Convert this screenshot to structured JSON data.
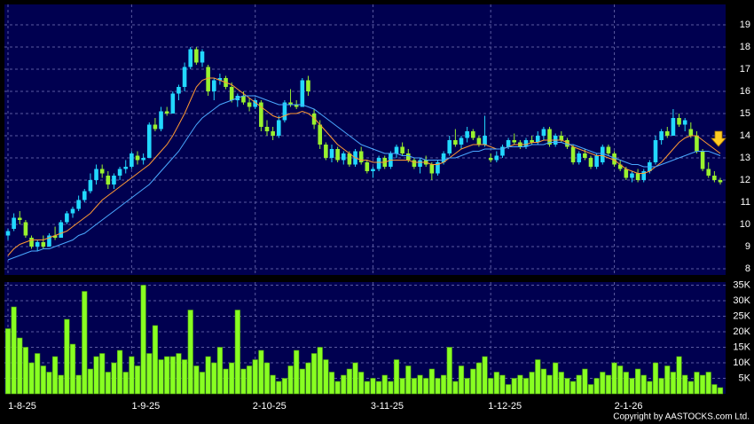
{
  "chart_data": [
    {
      "type": "candlestick",
      "up_color": "#22d8ff",
      "down_color": "#99f22e",
      "ylim": [
        7.72,
        19.92
      ],
      "yticks": [
        8,
        9,
        10,
        11,
        12,
        13,
        14,
        15,
        16,
        17,
        18,
        19
      ],
      "grid": true,
      "ohlc": [
        [
          9.5,
          9.8,
          9.3,
          9.7
        ],
        [
          9.8,
          10.5,
          9.7,
          10.3
        ],
        [
          10.3,
          10.6,
          10.0,
          10.2
        ],
        [
          10.1,
          10.2,
          9.4,
          9.5
        ],
        [
          9.4,
          9.5,
          8.9,
          9.0
        ],
        [
          9.0,
          9.3,
          8.8,
          9.2
        ],
        [
          9.2,
          9.5,
          8.9,
          9.0
        ],
        [
          9.0,
          9.6,
          9.0,
          9.5
        ],
        [
          9.5,
          9.9,
          9.3,
          9.4
        ],
        [
          9.4,
          10.2,
          9.4,
          10.1
        ],
        [
          10.1,
          10.6,
          10.0,
          10.5
        ],
        [
          10.5,
          10.8,
          10.3,
          10.7
        ],
        [
          10.7,
          11.3,
          10.6,
          11.1
        ],
        [
          11.1,
          11.6,
          11.0,
          11.5
        ],
        [
          11.5,
          12.3,
          11.4,
          12.0
        ],
        [
          12.0,
          12.7,
          11.8,
          12.5
        ],
        [
          12.5,
          12.7,
          12.1,
          12.3
        ],
        [
          12.2,
          12.4,
          11.6,
          11.8
        ],
        [
          11.8,
          12.3,
          11.6,
          12.2
        ],
        [
          12.2,
          12.6,
          12.0,
          12.5
        ],
        [
          12.5,
          12.9,
          12.3,
          12.6
        ],
        [
          12.6,
          13.3,
          12.5,
          13.2
        ],
        [
          13.1,
          13.3,
          12.7,
          12.9
        ],
        [
          12.9,
          13.2,
          12.7,
          13.0
        ],
        [
          13.0,
          14.6,
          13.0,
          14.5
        ],
        [
          14.5,
          14.8,
          14.2,
          14.3
        ],
        [
          14.3,
          15.3,
          14.2,
          15.1
        ],
        [
          15.1,
          15.3,
          14.9,
          15.0
        ],
        [
          15.0,
          16.0,
          15.0,
          15.9
        ],
        [
          15.9,
          16.3,
          15.6,
          16.2
        ],
        [
          16.2,
          17.3,
          16.0,
          17.1
        ],
        [
          17.1,
          18.0,
          17.0,
          17.9
        ],
        [
          17.9,
          18.0,
          17.2,
          17.3
        ],
        [
          17.3,
          17.9,
          17.1,
          17.8
        ],
        [
          17.1,
          17.2,
          15.8,
          16.0
        ],
        [
          16.0,
          16.6,
          15.6,
          16.5
        ],
        [
          16.5,
          16.8,
          16.3,
          16.6
        ],
        [
          16.6,
          16.7,
          16.1,
          16.2
        ],
        [
          16.2,
          16.4,
          15.5,
          15.6
        ],
        [
          15.6,
          15.9,
          15.3,
          15.8
        ],
        [
          15.8,
          16.0,
          15.4,
          15.5
        ],
        [
          15.5,
          15.7,
          15.1,
          15.3
        ],
        [
          15.3,
          15.7,
          15.2,
          15.6
        ],
        [
          15.5,
          15.6,
          14.2,
          14.4
        ],
        [
          14.4,
          14.7,
          14.0,
          14.2
        ],
        [
          14.2,
          14.4,
          13.8,
          14.0
        ],
        [
          14.0,
          14.9,
          13.9,
          14.7
        ],
        [
          14.7,
          15.6,
          14.6,
          15.5
        ],
        [
          15.5,
          16.1,
          15.3,
          15.4
        ],
        [
          15.4,
          15.6,
          15.2,
          15.3
        ],
        [
          15.3,
          16.6,
          15.3,
          16.5
        ],
        [
          16.5,
          16.7,
          15.8,
          16.0
        ],
        [
          15.0,
          15.2,
          14.3,
          14.5
        ],
        [
          14.5,
          14.7,
          13.4,
          13.6
        ],
        [
          13.6,
          13.7,
          12.9,
          13.0
        ],
        [
          13.0,
          13.6,
          12.8,
          13.4
        ],
        [
          13.4,
          13.5,
          12.8,
          12.9
        ],
        [
          12.9,
          13.3,
          12.7,
          13.2
        ],
        [
          13.2,
          13.3,
          12.6,
          12.7
        ],
        [
          12.7,
          13.4,
          12.6,
          13.3
        ],
        [
          13.3,
          13.5,
          12.7,
          12.8
        ],
        [
          12.8,
          12.9,
          12.3,
          12.4
        ],
        [
          12.4,
          12.6,
          12.1,
          12.5
        ],
        [
          12.5,
          13.1,
          12.4,
          13.0
        ],
        [
          13.0,
          13.1,
          12.5,
          12.6
        ],
        [
          12.6,
          13.3,
          12.5,
          13.2
        ],
        [
          13.2,
          13.6,
          13.0,
          13.5
        ],
        [
          13.5,
          13.7,
          13.1,
          13.2
        ],
        [
          13.2,
          13.4,
          12.8,
          12.9
        ],
        [
          12.9,
          13.0,
          12.5,
          12.6
        ],
        [
          12.6,
          13.0,
          12.3,
          12.9
        ],
        [
          12.9,
          13.1,
          12.6,
          12.7
        ],
        [
          12.7,
          12.8,
          12.0,
          12.3
        ],
        [
          12.3,
          12.9,
          12.2,
          12.8
        ],
        [
          12.8,
          13.3,
          12.7,
          13.2
        ],
        [
          13.2,
          14.0,
          13.1,
          13.8
        ],
        [
          13.8,
          14.3,
          13.5,
          13.6
        ],
        [
          13.6,
          14.0,
          13.4,
          13.9
        ],
        [
          13.9,
          14.4,
          13.7,
          14.2
        ],
        [
          14.2,
          14.3,
          13.8,
          13.9
        ],
        [
          13.9,
          14.0,
          13.5,
          13.6
        ],
        [
          13.6,
          14.9,
          13.5,
          14.0
        ],
        [
          13.0,
          13.2,
          12.8,
          12.9
        ],
        [
          12.9,
          13.3,
          12.8,
          13.1
        ],
        [
          13.1,
          13.6,
          13.0,
          13.5
        ],
        [
          13.5,
          13.9,
          13.4,
          13.8
        ],
        [
          13.8,
          14.1,
          13.6,
          13.7
        ],
        [
          13.7,
          13.8,
          13.4,
          13.5
        ],
        [
          13.5,
          13.9,
          13.4,
          13.8
        ],
        [
          13.8,
          14.0,
          13.6,
          13.7
        ],
        [
          13.7,
          14.2,
          13.6,
          14.0
        ],
        [
          14.0,
          14.4,
          13.8,
          14.3
        ],
        [
          14.3,
          14.4,
          13.5,
          13.6
        ],
        [
          13.6,
          14.1,
          13.5,
          14.0
        ],
        [
          14.0,
          14.2,
          13.7,
          13.8
        ],
        [
          13.8,
          13.9,
          13.4,
          13.5
        ],
        [
          13.5,
          13.6,
          12.7,
          12.8
        ],
        [
          12.8,
          13.3,
          12.7,
          13.2
        ],
        [
          13.2,
          13.4,
          12.9,
          13.0
        ],
        [
          13.0,
          13.1,
          12.5,
          12.6
        ],
        [
          12.6,
          13.2,
          12.5,
          13.1
        ],
        [
          12.8,
          13.6,
          12.7,
          13.5
        ],
        [
          13.5,
          13.6,
          13.1,
          13.2
        ],
        [
          13.2,
          13.3,
          12.6,
          12.7
        ],
        [
          12.7,
          12.9,
          12.4,
          12.5
        ],
        [
          12.5,
          12.6,
          12.0,
          12.1
        ],
        [
          12.1,
          12.4,
          11.9,
          12.3
        ],
        [
          12.3,
          12.5,
          11.9,
          12.0
        ],
        [
          12.0,
          12.5,
          11.9,
          12.4
        ],
        [
          12.4,
          12.9,
          12.3,
          12.8
        ],
        [
          12.8,
          14.0,
          12.7,
          13.8
        ],
        [
          13.8,
          14.3,
          13.6,
          14.2
        ],
        [
          14.2,
          14.4,
          13.9,
          14.0
        ],
        [
          14.0,
          15.2,
          14.0,
          14.8
        ],
        [
          14.8,
          15.0,
          14.4,
          14.5
        ],
        [
          14.5,
          14.8,
          14.2,
          14.7
        ],
        [
          14.3,
          14.6,
          13.9,
          14.0
        ],
        [
          14.0,
          14.2,
          13.2,
          13.3
        ],
        [
          13.3,
          13.4,
          12.4,
          12.5
        ],
        [
          12.5,
          12.8,
          12.1,
          12.2
        ],
        [
          12.2,
          12.4,
          11.9,
          12.0
        ],
        [
          12.0,
          12.1,
          11.8,
          11.9
        ]
      ],
      "lines": [
        {
          "color": "#ff9933",
          "values": [
            8.6,
            8.9,
            9.1,
            9.2,
            9.3,
            9.3,
            9.3,
            9.4,
            9.5,
            9.6,
            9.7,
            9.9,
            10.1,
            10.3,
            10.5,
            10.8,
            11.1,
            11.3,
            11.5,
            11.7,
            11.9,
            12.1,
            12.3,
            12.5,
            12.7,
            13.0,
            13.3,
            13.6,
            14.0,
            14.5,
            15.0,
            15.6,
            16.2,
            16.5,
            16.6,
            16.6,
            16.5,
            16.4,
            16.3,
            16.1,
            15.9,
            15.7,
            15.5,
            15.3,
            15.1,
            14.9,
            14.8,
            14.9,
            15.0,
            15.0,
            15.1,
            15.0,
            14.8,
            14.5,
            14.2,
            13.9,
            13.6,
            13.4,
            13.2,
            13.0,
            12.9,
            12.9,
            12.8,
            12.8,
            12.8,
            12.9,
            12.9,
            12.9,
            12.9,
            12.8,
            12.8,
            12.8,
            12.7,
            12.7,
            12.8,
            13.0,
            13.2,
            13.4,
            13.5,
            13.6,
            13.6,
            13.6,
            13.5,
            13.4,
            13.4,
            13.5,
            13.6,
            13.6,
            13.6,
            13.7,
            13.7,
            13.8,
            13.8,
            13.8,
            13.8,
            13.7,
            13.5,
            13.4,
            13.3,
            13.2,
            13.1,
            13.1,
            13.0,
            12.9,
            12.7,
            12.5,
            12.4,
            12.3,
            12.3,
            12.4,
            12.6,
            12.8,
            13.1,
            13.4,
            13.7,
            13.9,
            14.0,
            14.0,
            13.8,
            13.6,
            13.4,
            13.2
          ]
        },
        {
          "color": "#4aa8ff",
          "values": [
            8.4,
            8.5,
            8.6,
            8.7,
            8.8,
            8.8,
            8.9,
            8.9,
            9.0,
            9.1,
            9.2,
            9.3,
            9.5,
            9.6,
            9.8,
            10.0,
            10.2,
            10.4,
            10.6,
            10.8,
            11.0,
            11.2,
            11.4,
            11.6,
            11.8,
            12.1,
            12.4,
            12.7,
            13.0,
            13.3,
            13.7,
            14.1,
            14.5,
            14.8,
            15.0,
            15.2,
            15.4,
            15.5,
            15.6,
            15.7,
            15.8,
            15.8,
            15.8,
            15.7,
            15.6,
            15.5,
            15.4,
            15.4,
            15.4,
            15.4,
            15.4,
            15.3,
            15.2,
            15.0,
            14.8,
            14.6,
            14.4,
            14.2,
            14.0,
            13.8,
            13.6,
            13.5,
            13.4,
            13.3,
            13.2,
            13.2,
            13.2,
            13.1,
            13.1,
            13.0,
            13.0,
            12.9,
            12.9,
            12.9,
            12.9,
            13.0,
            13.0,
            13.1,
            13.2,
            13.3,
            13.3,
            13.4,
            13.4,
            13.4,
            13.4,
            13.5,
            13.5,
            13.5,
            13.5,
            13.6,
            13.6,
            13.6,
            13.7,
            13.7,
            13.7,
            13.6,
            13.6,
            13.5,
            13.4,
            13.3,
            13.2,
            13.2,
            13.1,
            13.0,
            12.9,
            12.8,
            12.7,
            12.7,
            12.6,
            12.6,
            12.6,
            12.7,
            12.8,
            12.9,
            13.0,
            13.1,
            13.2,
            13.3,
            13.3,
            13.3,
            13.2,
            13.1
          ]
        }
      ]
    },
    {
      "type": "bar",
      "color": "#88ff22",
      "ylim": [
        0,
        36000
      ],
      "yticks": [
        {
          "value": 5000,
          "label": "5K"
        },
        {
          "value": 10000,
          "label": "10K"
        },
        {
          "value": 15000,
          "label": "15K"
        },
        {
          "value": 20000,
          "label": "20K"
        },
        {
          "value": 25000,
          "label": "25K"
        },
        {
          "value": 30000,
          "label": "30K"
        },
        {
          "value": 35000,
          "label": "35K"
        }
      ],
      "grid": true,
      "categories": [
        "1-8-25",
        null,
        null,
        null,
        null,
        null,
        null,
        null,
        null,
        null,
        null,
        null,
        null,
        null,
        null,
        null,
        null,
        null,
        null,
        null,
        null,
        "1-9-25",
        null,
        null,
        null,
        null,
        null,
        null,
        null,
        null,
        null,
        null,
        null,
        null,
        null,
        null,
        null,
        null,
        null,
        null,
        null,
        null,
        "2-10-25",
        null,
        null,
        null,
        null,
        null,
        null,
        null,
        null,
        null,
        null,
        null,
        null,
        null,
        null,
        null,
        null,
        null,
        null,
        null,
        "3-11-25",
        null,
        null,
        null,
        null,
        null,
        null,
        null,
        null,
        null,
        null,
        null,
        null,
        null,
        null,
        null,
        null,
        null,
        null,
        null,
        "1-12-25",
        null,
        null,
        null,
        null,
        null,
        null,
        null,
        null,
        null,
        null,
        null,
        null,
        null,
        null,
        null,
        null,
        null,
        null,
        null,
        null,
        "2-1-26",
        null,
        null,
        null,
        null,
        null,
        null,
        null,
        null,
        null,
        null,
        null,
        null,
        null,
        null,
        null,
        null,
        null,
        null
      ],
      "values": [
        21000,
        28000,
        18000,
        15000,
        10000,
        13000,
        9000,
        7000,
        12000,
        6000,
        24000,
        16000,
        6000,
        33000,
        8000,
        12000,
        13000,
        7000,
        10000,
        14000,
        7000,
        12000,
        9000,
        35000,
        13000,
        22000,
        11000,
        12000,
        12000,
        13000,
        11000,
        27000,
        9000,
        7000,
        12000,
        10000,
        15000,
        8000,
        10000,
        27000,
        8000,
        9000,
        11000,
        14000,
        10000,
        6000,
        4000,
        5000,
        9000,
        14000,
        8000,
        10000,
        13000,
        15000,
        11000,
        7000,
        4000,
        6000,
        8000,
        10000,
        7000,
        4000,
        5000,
        4000,
        6000,
        4000,
        11000,
        5000,
        9000,
        5000,
        6000,
        5000,
        8000,
        5000,
        6000,
        15000,
        4000,
        9000,
        5000,
        8000,
        10000,
        12000,
        5000,
        7000,
        6000,
        3000,
        5000,
        6000,
        5000,
        7000,
        11000,
        8000,
        6000,
        10000,
        7000,
        5000,
        4000,
        6000,
        8000,
        3000,
        5000,
        7000,
        6000,
        10000,
        9000,
        7000,
        5000,
        8000,
        6000,
        4000,
        10000,
        5000,
        9000,
        7000,
        12000,
        6000,
        4000,
        7000,
        6000,
        7000,
        3000,
        2000
      ]
    }
  ],
  "copyright": "Copyright by AASTOCKS.com Ltd."
}
